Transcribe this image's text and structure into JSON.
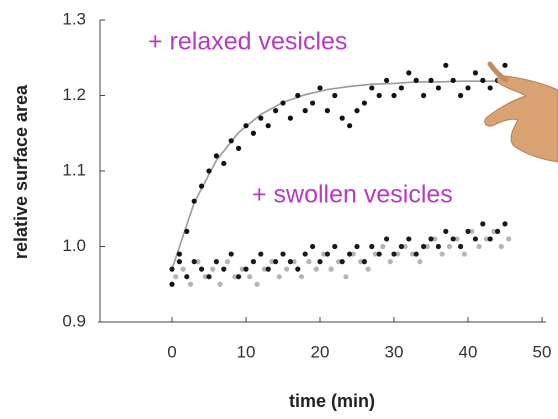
{
  "chart_data": {
    "type": "scatter",
    "x_label": "time (min)",
    "y_label": "relative surface area",
    "annotations": [
      "+ relaxed vesicles",
      "+ swollen vesicles"
    ],
    "annotation_color": "#b53bc0",
    "xlim": [
      -10,
      50
    ],
    "xticks": [
      0,
      10,
      20,
      30,
      40,
      50
    ],
    "ylim": [
      0.9,
      1.3
    ],
    "yticks": [
      0.9,
      {
        "value": 1,
        "label": "1.0"
      },
      1.1,
      1.2,
      1.3
    ],
    "series": [
      {
        "kind": "line",
        "color": "#9a9a9a",
        "x": [
          0,
          3,
          6,
          9,
          12,
          15,
          18,
          21,
          24,
          27,
          30,
          33,
          36,
          39,
          42,
          45
        ],
        "values": [
          0.97,
          1.058,
          1.114,
          1.151,
          1.175,
          1.191,
          1.201,
          1.208,
          1.212,
          1.215,
          1.216,
          1.218,
          1.218,
          1.219,
          1.219,
          1.219
        ]
      },
      {
        "kind": "dot",
        "color": "#111111",
        "x": [
          0,
          1,
          2,
          3,
          4,
          5,
          6,
          7,
          8,
          9,
          10,
          11,
          12,
          13,
          14,
          15,
          16,
          17,
          18,
          19,
          20,
          21,
          22,
          23,
          24,
          25,
          26,
          27,
          28,
          29,
          30,
          31,
          32,
          33,
          34,
          35,
          36,
          37,
          38,
          39,
          40,
          41,
          42,
          43,
          44,
          45
        ],
        "values": [
          0.95,
          0.99,
          1.02,
          1.06,
          1.08,
          1.1,
          1.12,
          1.11,
          1.14,
          1.13,
          1.16,
          1.15,
          1.17,
          1.16,
          1.18,
          1.19,
          1.17,
          1.2,
          1.18,
          1.19,
          1.21,
          1.18,
          1.2,
          1.17,
          1.16,
          1.18,
          1.19,
          1.21,
          1.2,
          1.22,
          1.2,
          1.21,
          1.23,
          1.22,
          1.2,
          1.22,
          1.21,
          1.24,
          1.22,
          1.2,
          1.21,
          1.23,
          1.22,
          1.21,
          1.22,
          1.24
        ]
      },
      {
        "kind": "dot",
        "color": "#b5b5b5",
        "x": [
          0.5,
          1.5,
          2.5,
          3.5,
          4.5,
          5.5,
          6.5,
          7.5,
          8.5,
          9.5,
          10.5,
          11.5,
          12.5,
          13.5,
          14.5,
          15.5,
          16.5,
          17.5,
          18.5,
          19.5,
          20.5,
          21.5,
          22.5,
          23.5,
          24.5,
          25.5,
          26.5,
          27.5,
          28.5,
          29.5,
          30.5,
          31.5,
          32.5,
          33.5,
          34.5,
          35.5,
          36.5,
          37.5,
          38.5,
          39.5,
          40.5,
          41.5,
          42.5,
          43.5,
          44.5,
          45.5
        ],
        "values": [
          0.96,
          0.97,
          0.95,
          0.98,
          0.96,
          0.97,
          0.95,
          0.98,
          0.96,
          0.97,
          0.96,
          0.95,
          0.97,
          0.98,
          0.96,
          0.97,
          0.98,
          0.96,
          0.98,
          0.97,
          0.99,
          0.97,
          0.98,
          0.96,
          0.99,
          0.98,
          0.97,
          0.99,
          1.0,
          0.98,
          0.99,
          1.0,
          0.99,
          0.98,
          1.0,
          1.01,
          0.99,
          1.0,
          1.01,
          0.99,
          1.02,
          1.0,
          1.01,
          1.02,
          1.0,
          1.01
        ]
      },
      {
        "kind": "dot",
        "color": "#1a1a1a",
        "x": [
          0,
          1,
          2,
          3,
          4,
          5,
          6,
          7,
          8,
          9,
          10,
          11,
          12,
          13,
          14,
          15,
          16,
          17,
          18,
          19,
          20,
          21,
          22,
          23,
          24,
          25,
          26,
          27,
          28,
          29,
          30,
          31,
          32,
          33,
          34,
          35,
          36,
          37,
          38,
          39,
          40,
          41,
          42,
          43,
          44,
          45
        ],
        "values": [
          0.97,
          0.98,
          0.96,
          0.98,
          0.97,
          0.96,
          0.98,
          0.97,
          0.99,
          0.96,
          0.97,
          0.98,
          0.99,
          0.97,
          0.98,
          0.99,
          0.98,
          0.97,
          0.99,
          1.0,
          0.98,
          0.99,
          1.0,
          0.98,
          0.99,
          1.0,
          0.98,
          1.0,
          0.99,
          1.01,
          0.99,
          1.0,
          1.01,
          0.99,
          1.0,
          1.01,
          1.0,
          1.02,
          1.01,
          1.0,
          1.02,
          1.01,
          1.03,
          1.01,
          1.02,
          1.03
        ]
      }
    ]
  }
}
